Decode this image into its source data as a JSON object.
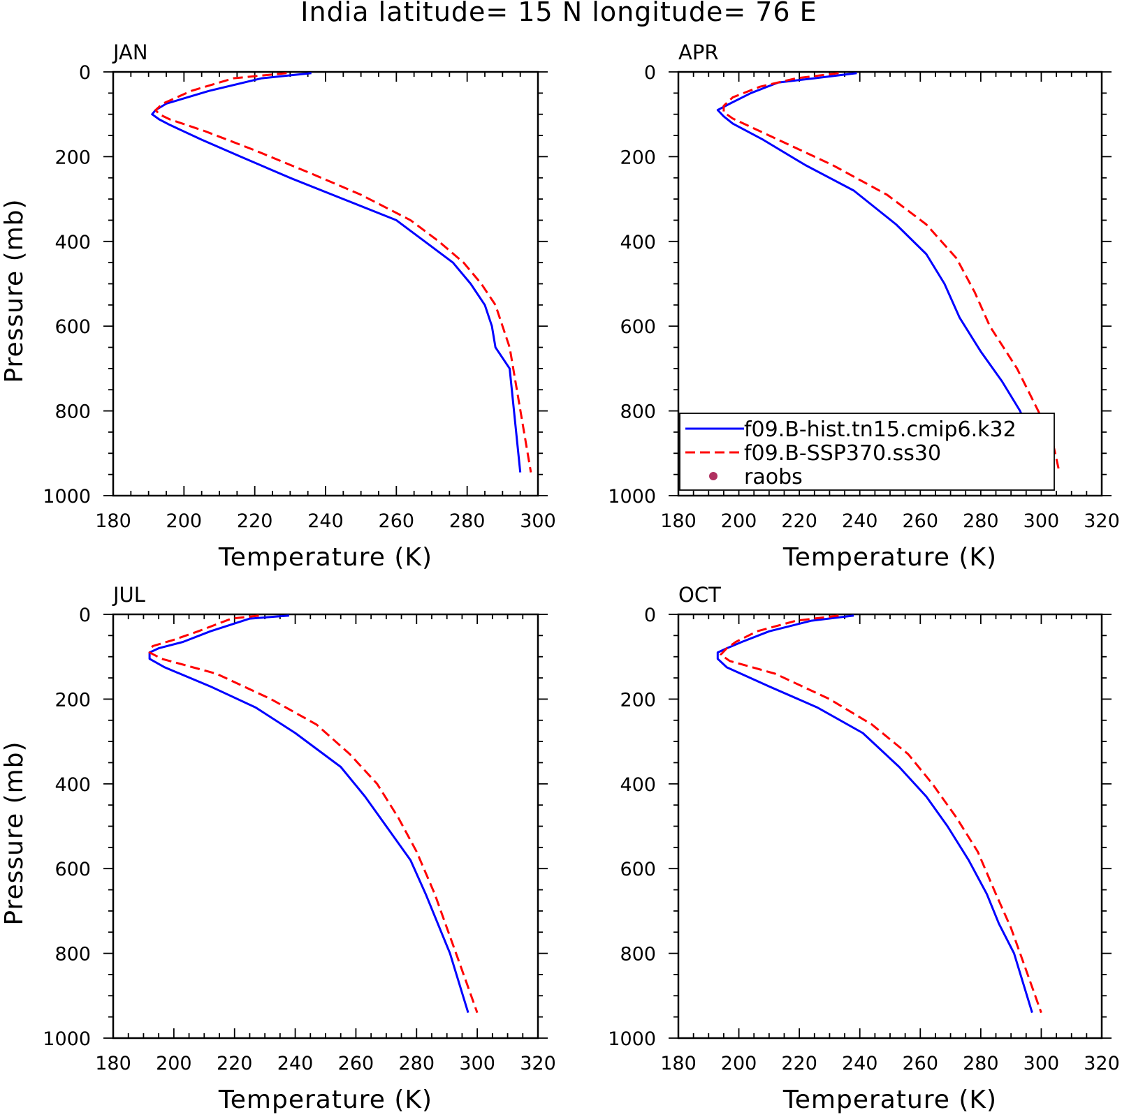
{
  "figure": {
    "title": "India  latitude= 15 N longitude= 76 E"
  },
  "legend": {
    "entries": [
      {
        "label": "f09.B-hist.tn15.cmip6.k32",
        "color": "#0000ff",
        "style": "solid"
      },
      {
        "label": "f09.B-SSP370.ss30",
        "color": "#ff0000",
        "style": "dashed"
      },
      {
        "label": "raobs",
        "color": "#b03060",
        "style": "marker"
      }
    ]
  },
  "chart_data": [
    {
      "type": "line",
      "panel_label": "JAN",
      "xlabel": "Temperature (K)",
      "ylabel": "Pressure (mb)",
      "xlim": [
        180,
        300
      ],
      "ylim": [
        1000,
        0
      ],
      "xticks": [
        "180",
        "200",
        "220",
        "240",
        "260",
        "280",
        "300"
      ],
      "yticks": [
        "0",
        "200",
        "400",
        "600",
        "800",
        "1000"
      ],
      "series": [
        {
          "color": "#0000ff",
          "style": "solid",
          "x": [
            236,
            222,
            207,
            195,
            192,
            191,
            193,
            196,
            205,
            216,
            230,
            245,
            260,
            268,
            276,
            281,
            285,
            287,
            288,
            292,
            295
          ],
          "y": [
            3,
            15,
            45,
            75,
            90,
            100,
            112,
            125,
            160,
            200,
            250,
            300,
            350,
            400,
            450,
            500,
            550,
            600,
            650,
            700,
            945
          ]
        },
        {
          "color": "#ff0000",
          "style": "dashed",
          "x": [
            229,
            214,
            202,
            194,
            192,
            193,
            196,
            206,
            220,
            236,
            250,
            264,
            272,
            279,
            284,
            288,
            290,
            292,
            298
          ],
          "y": [
            3,
            15,
            45,
            75,
            90,
            100,
            112,
            140,
            185,
            240,
            290,
            350,
            400,
            450,
            500,
            550,
            600,
            650,
            945
          ]
        }
      ]
    },
    {
      "type": "line",
      "panel_label": "APR",
      "xlabel": "Temperature (K)",
      "ylabel": "",
      "xlim": [
        180,
        320
      ],
      "ylim": [
        1000,
        0
      ],
      "xticks": [
        "180",
        "200",
        "220",
        "240",
        "260",
        "280",
        "300",
        "320"
      ],
      "yticks": [
        "0",
        "200",
        "400",
        "600",
        "800",
        "1000"
      ],
      "series": [
        {
          "color": "#0000ff",
          "style": "solid",
          "x": [
            239,
            225,
            213,
            204,
            197,
            193,
            195,
            198,
            208,
            222,
            238,
            252,
            262,
            268,
            273,
            280,
            287,
            293,
            297,
            302
          ],
          "y": [
            3,
            15,
            25,
            50,
            75,
            90,
            105,
            122,
            160,
            220,
            280,
            360,
            430,
            500,
            580,
            660,
            730,
            800,
            870,
            945
          ]
        },
        {
          "color": "#ff0000",
          "style": "dashed",
          "x": [
            233,
            219,
            207,
            198,
            195,
            195,
            198,
            213,
            231,
            249,
            262,
            272,
            278,
            283,
            292,
            299,
            304,
            306
          ],
          "y": [
            3,
            15,
            35,
            60,
            80,
            95,
            110,
            160,
            220,
            290,
            360,
            440,
            520,
            600,
            700,
            800,
            880,
            945
          ]
        }
      ]
    },
    {
      "type": "line",
      "panel_label": "JUL",
      "xlabel": "Temperature (K)",
      "ylabel": "Pressure (mb)",
      "xlim": [
        180,
        320
      ],
      "ylim": [
        1000,
        0
      ],
      "xticks": [
        "180",
        "200",
        "220",
        "240",
        "260",
        "280",
        "300",
        "320"
      ],
      "yticks": [
        "0",
        "200",
        "400",
        "600",
        "800",
        "1000"
      ],
      "series": [
        {
          "color": "#0000ff",
          "style": "solid",
          "x": [
            238,
            225,
            212,
            203,
            195,
            192,
            192,
            197,
            212,
            227,
            240,
            255,
            263,
            270,
            278,
            283,
            287,
            291,
            297
          ],
          "y": [
            3,
            10,
            40,
            65,
            80,
            90,
            105,
            125,
            170,
            220,
            280,
            360,
            430,
            500,
            580,
            660,
            730,
            800,
            940
          ]
        },
        {
          "color": "#ff0000",
          "style": "dashed",
          "x": [
            228,
            219,
            208,
            200,
            193,
            192,
            196,
            214,
            232,
            247,
            258,
            267,
            274,
            280,
            286,
            290,
            294,
            300
          ],
          "y": [
            3,
            10,
            40,
            60,
            75,
            90,
            105,
            140,
            200,
            260,
            330,
            400,
            480,
            560,
            660,
            740,
            820,
            940
          ]
        }
      ]
    },
    {
      "type": "line",
      "panel_label": "OCT",
      "xlabel": "Temperature (K)",
      "ylabel": "",
      "xlim": [
        180,
        320
      ],
      "ylim": [
        1000,
        0
      ],
      "xticks": [
        "180",
        "200",
        "220",
        "240",
        "260",
        "280",
        "300",
        "320"
      ],
      "yticks": [
        "0",
        "200",
        "400",
        "600",
        "800",
        "1000"
      ],
      "series": [
        {
          "color": "#0000ff",
          "style": "solid",
          "x": [
            238,
            224,
            210,
            201,
            196,
            193,
            193,
            196,
            210,
            226,
            241,
            253,
            262,
            269,
            276,
            282,
            286,
            291,
            297
          ],
          "y": [
            3,
            15,
            40,
            65,
            80,
            90,
            105,
            125,
            170,
            220,
            280,
            360,
            430,
            500,
            580,
            660,
            730,
            800,
            940
          ]
        },
        {
          "color": "#ff0000",
          "style": "dashed",
          "x": [
            233,
            219,
            206,
            199,
            196,
            194,
            197,
            212,
            230,
            244,
            256,
            264,
            272,
            279,
            285,
            290,
            294,
            300
          ],
          "y": [
            3,
            15,
            40,
            65,
            80,
            95,
            110,
            140,
            200,
            260,
            330,
            400,
            480,
            560,
            660,
            740,
            820,
            940
          ]
        }
      ]
    }
  ]
}
